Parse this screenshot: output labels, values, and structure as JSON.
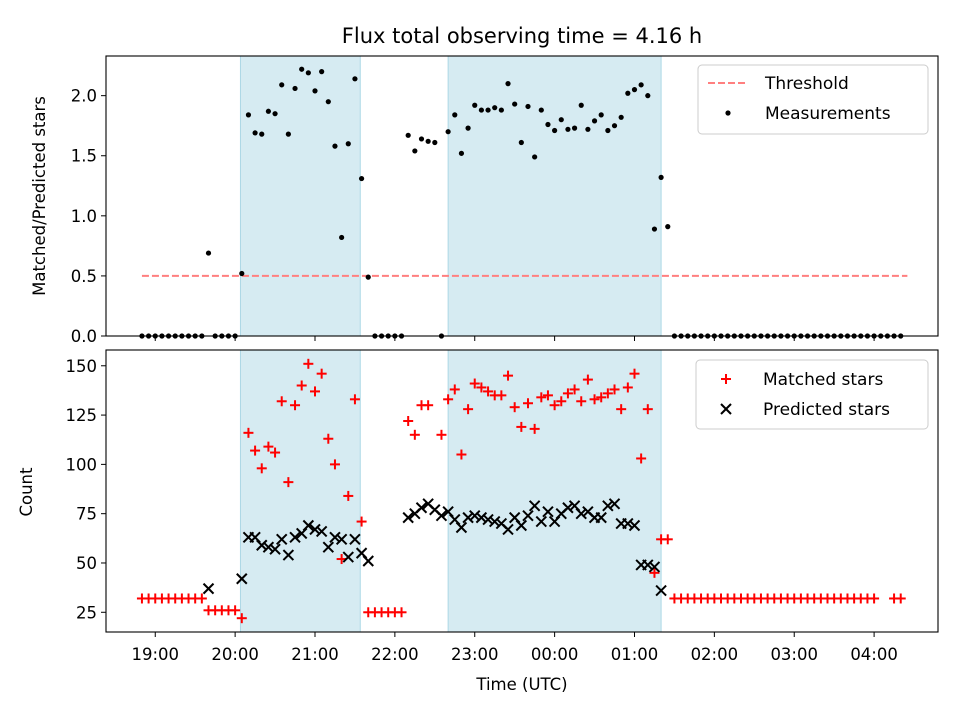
{
  "title": "Flux total observing time = 4.16 h",
  "colors": {
    "threshold": "#ff7f7f",
    "measurement": "#000000",
    "matched": "#ff0000",
    "predicted": "#000000",
    "shade": "#add8e6"
  },
  "chart_data": [
    {
      "type": "scatter",
      "panel": "top",
      "ylabel": "Matched/Predicted stars",
      "ylim": [
        0,
        2.33
      ],
      "y_ticks": [
        0.0,
        0.5,
        1.0,
        1.5,
        2.0
      ],
      "y_tick_labels": [
        "0.0",
        "0.5",
        "1.0",
        "1.5",
        "2.0"
      ],
      "legend_position": "top-right",
      "legend": [
        "Threshold",
        "Measurements"
      ],
      "shaded_regions": [
        [
          "20:04",
          "21:34"
        ],
        [
          "22:40",
          "01:20"
        ]
      ],
      "threshold": {
        "value": 0.5,
        "x_start": "18:50",
        "x_end": "04:25",
        "style": "dashed"
      },
      "x": [
        "18:50",
        "18:55",
        "19:00",
        "19:05",
        "19:10",
        "19:15",
        "19:20",
        "19:25",
        "19:30",
        "19:35",
        "19:40",
        "19:45",
        "19:50",
        "19:55",
        "20:00",
        "20:05",
        "20:10",
        "20:15",
        "20:20",
        "20:25",
        "20:30",
        "20:35",
        "20:40",
        "20:45",
        "20:50",
        "20:55",
        "21:00",
        "21:05",
        "21:10",
        "21:15",
        "21:20",
        "21:25",
        "21:30",
        "21:35",
        "21:40",
        "21:45",
        "21:50",
        "21:55",
        "22:00",
        "22:05",
        "22:10",
        "22:15",
        "22:20",
        "22:25",
        "22:30",
        "22:35",
        "22:40",
        "22:45",
        "22:50",
        "22:55",
        "23:00",
        "23:05",
        "23:10",
        "23:15",
        "23:20",
        "23:25",
        "23:30",
        "23:35",
        "23:40",
        "23:45",
        "23:50",
        "23:55",
        "00:00",
        "00:05",
        "00:10",
        "00:15",
        "00:20",
        "00:25",
        "00:30",
        "00:35",
        "00:40",
        "00:45",
        "00:50",
        "00:55",
        "01:00",
        "01:05",
        "01:10",
        "01:15",
        "01:20",
        "01:25",
        "01:30",
        "01:35",
        "01:40",
        "01:45",
        "01:50",
        "01:55",
        "02:00",
        "02:05",
        "02:10",
        "02:15",
        "02:20",
        "02:25",
        "02:30",
        "02:35",
        "02:40",
        "02:45",
        "02:50",
        "02:55",
        "03:00",
        "03:05",
        "03:10",
        "03:15",
        "03:20",
        "03:25",
        "03:30",
        "03:35",
        "03:40",
        "03:45",
        "03:50",
        "03:55",
        "04:00",
        "04:05",
        "04:10",
        "04:15",
        "04:20"
      ],
      "series": [
        {
          "name": "Measurements",
          "values": [
            0,
            0,
            0,
            0,
            0,
            0,
            0,
            0,
            0,
            0,
            0.69,
            0,
            0,
            0,
            0,
            0.52,
            1.84,
            1.69,
            1.68,
            1.87,
            1.85,
            2.09,
            1.68,
            2.06,
            2.22,
            2.19,
            2.04,
            2.2,
            1.95,
            1.58,
            0.82,
            1.6,
            2.14,
            1.31,
            0.49,
            0,
            0,
            0,
            0,
            0,
            1.67,
            1.54,
            1.64,
            1.62,
            1.61,
            0,
            1.7,
            1.84,
            1.52,
            1.73,
            1.92,
            1.88,
            1.88,
            1.9,
            1.88,
            2.1,
            1.93,
            1.61,
            1.91,
            1.49,
            1.88,
            1.76,
            1.71,
            1.8,
            1.72,
            1.73,
            1.92,
            1.72,
            1.79,
            1.84,
            1.71,
            1.75,
            1.82,
            2.02,
            2.05,
            2.09,
            2.0,
            0.89,
            1.32,
            0.91,
            0,
            0,
            0,
            0,
            0,
            0,
            0,
            0,
            0,
            0,
            0,
            0,
            0,
            0,
            0,
            0,
            0,
            0,
            0,
            0,
            0,
            0,
            0,
            0,
            0,
            0,
            0,
            0,
            0,
            0,
            0,
            0,
            0,
            0,
            0
          ]
        }
      ]
    },
    {
      "type": "scatter",
      "panel": "bottom",
      "xlabel": "Time (UTC)",
      "ylabel": "Count",
      "ylim": [
        15,
        158
      ],
      "y_ticks": [
        25,
        50,
        75,
        100,
        125,
        150
      ],
      "y_tick_labels": [
        "25",
        "50",
        "75",
        "100",
        "125",
        "150"
      ],
      "x_ticks": [
        "19:00",
        "20:00",
        "21:00",
        "22:00",
        "23:00",
        "00:00",
        "01:00",
        "02:00",
        "03:00",
        "04:00"
      ],
      "x_range": [
        "18:23",
        "04:48"
      ],
      "legend_position": "top-right",
      "legend": [
        "Matched stars",
        "Predicted stars"
      ],
      "shaded_regions": [
        [
          "20:04",
          "21:34"
        ],
        [
          "22:40",
          "01:20"
        ]
      ],
      "x": [
        "18:50",
        "18:55",
        "19:00",
        "19:05",
        "19:10",
        "19:15",
        "19:20",
        "19:25",
        "19:30",
        "19:35",
        "19:40",
        "19:45",
        "19:50",
        "19:55",
        "20:00",
        "20:05",
        "20:10",
        "20:15",
        "20:20",
        "20:25",
        "20:30",
        "20:35",
        "20:40",
        "20:45",
        "20:50",
        "20:55",
        "21:00",
        "21:05",
        "21:10",
        "21:15",
        "21:20",
        "21:25",
        "21:30",
        "21:35",
        "21:40",
        "21:45",
        "21:50",
        "21:55",
        "22:00",
        "22:05",
        "22:10",
        "22:15",
        "22:20",
        "22:25",
        "22:30",
        "22:35",
        "22:40",
        "22:45",
        "22:50",
        "22:55",
        "23:00",
        "23:05",
        "23:10",
        "23:15",
        "23:20",
        "23:25",
        "23:30",
        "23:35",
        "23:40",
        "23:45",
        "23:50",
        "23:55",
        "00:00",
        "00:05",
        "00:10",
        "00:15",
        "00:20",
        "00:25",
        "00:30",
        "00:35",
        "00:40",
        "00:45",
        "00:50",
        "00:55",
        "01:00",
        "01:05",
        "01:10",
        "01:15",
        "01:20",
        "01:25",
        "01:30",
        "01:35",
        "01:40",
        "01:45",
        "01:50",
        "01:55",
        "02:00",
        "02:05",
        "02:10",
        "02:15",
        "02:20",
        "02:25",
        "02:30",
        "02:35",
        "02:40",
        "02:45",
        "02:50",
        "02:55",
        "03:00",
        "03:05",
        "03:10",
        "03:15",
        "03:20",
        "03:25",
        "03:30",
        "03:35",
        "03:40",
        "03:45",
        "03:50",
        "03:55",
        "04:00",
        "04:05",
        "04:10",
        "04:15",
        "04:20"
      ],
      "series": [
        {
          "name": "Matched stars",
          "values": [
            32,
            32,
            32,
            32,
            32,
            32,
            32,
            32,
            32,
            32,
            26,
            26,
            26,
            26,
            26,
            22,
            116,
            107,
            98,
            109,
            106,
            132,
            91,
            130,
            140,
            151,
            137,
            146,
            113,
            100,
            52,
            84,
            133,
            71,
            25,
            25,
            25,
            25,
            25,
            25,
            122,
            115,
            130,
            130,
            null,
            115,
            133,
            138,
            105,
            128,
            141,
            139,
            137,
            135,
            135,
            145,
            129,
            119,
            131,
            118,
            134,
            135,
            130,
            132,
            136,
            138,
            132,
            143,
            133,
            134,
            136,
            138,
            128,
            139,
            146,
            103,
            128,
            45,
            62,
            62,
            32,
            32,
            32,
            32,
            32,
            32,
            32,
            32,
            32,
            32,
            32,
            32,
            32,
            32,
            32,
            32,
            32,
            32,
            32,
            32,
            32,
            32,
            32,
            32,
            32,
            32,
            32,
            32,
            32,
            32,
            32,
            null,
            null,
            32,
            32
          ]
        },
        {
          "name": "Predicted stars",
          "values": [
            null,
            null,
            null,
            null,
            null,
            null,
            null,
            null,
            null,
            null,
            37,
            null,
            null,
            null,
            null,
            42,
            63,
            63,
            59,
            58,
            57,
            62,
            54,
            63,
            65,
            69,
            67,
            66,
            58,
            63,
            62,
            53,
            62,
            55,
            51,
            null,
            null,
            null,
            null,
            null,
            73,
            75,
            78,
            80,
            77,
            74,
            76,
            72,
            68,
            73,
            74,
            73,
            72,
            71,
            70,
            67,
            73,
            69,
            74,
            79,
            71,
            76,
            71,
            75,
            78,
            79,
            75,
            76,
            73,
            73,
            79,
            80,
            70,
            70,
            69,
            49,
            49,
            48,
            36,
            null,
            null,
            null,
            null,
            null,
            null,
            null,
            null,
            null,
            null,
            null,
            null,
            null,
            null,
            null,
            null,
            null,
            null,
            null,
            null,
            null,
            null,
            null,
            null,
            null,
            null,
            null,
            null,
            null,
            null,
            null,
            null,
            null,
            null,
            null,
            null
          ]
        }
      ]
    }
  ]
}
